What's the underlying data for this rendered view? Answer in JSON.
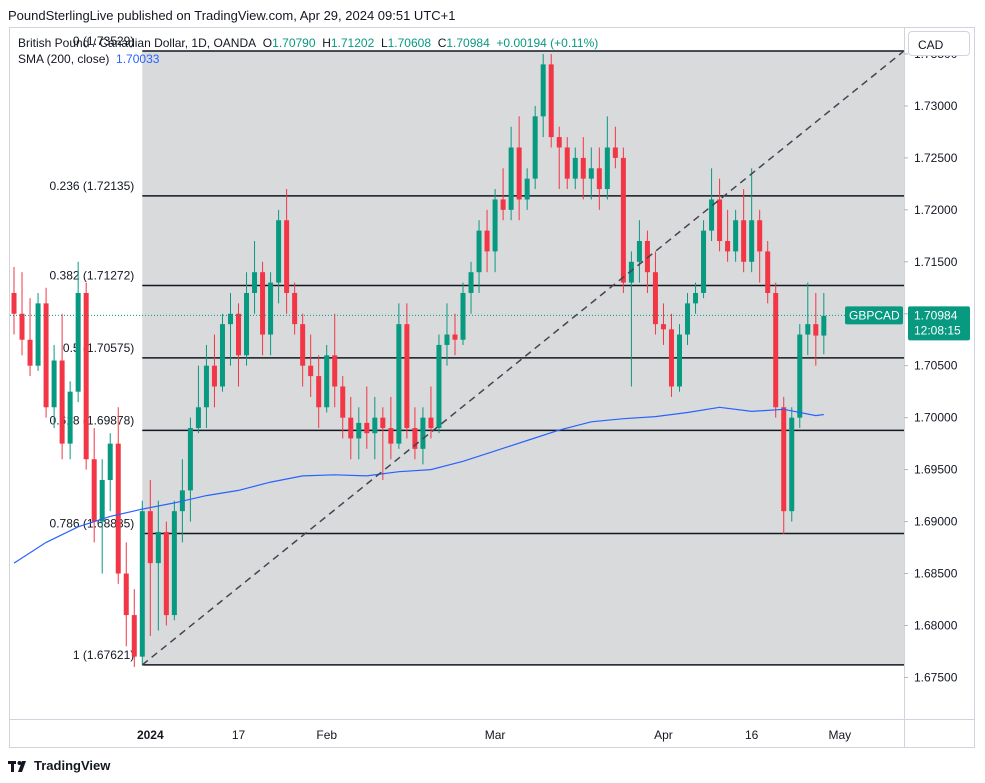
{
  "caption": "PoundSterlingLive published on TradingView.com, Apr 29, 2024 09:51 UTC+1",
  "legend": {
    "title": "British Pound / Canadian Dollar, 1D, OANDA",
    "o_key": "O",
    "o": "1.70790",
    "h_key": "H",
    "h": "1.71202",
    "l_key": "L",
    "l": "1.70608",
    "c_key": "C",
    "c": "1.70984",
    "change": "+0.00194 (+0.11%)",
    "sma_label": "SMA (200, close)",
    "sma_value": "1.70033"
  },
  "currency_button": "CAD",
  "badge": {
    "symbol": "GBPCAD",
    "price": "1.70984",
    "countdown": "12:08:15"
  },
  "footer": {
    "brand": "TradingView",
    "icon": "tradingview-logo-icon"
  },
  "colors": {
    "up": "#089981",
    "down": "#f23645",
    "sma": "#2962ff",
    "fib_bg": "#d9dadb",
    "fib_line": "#131722",
    "trend": "#434651"
  },
  "chart_data": {
    "type": "candlestick",
    "symbol": "GBPCAD",
    "title": "British Pound / Canadian Dollar, 1D, OANDA",
    "ylim": [
      1.671,
      1.7375
    ],
    "y_ticks": [
      "1.73500",
      "1.73000",
      "1.72500",
      "1.72000",
      "1.71500",
      "1.71000",
      "1.70500",
      "1.70000",
      "1.69500",
      "1.69000",
      "1.68500",
      "1.68000",
      "1.67500"
    ],
    "x_labels": [
      {
        "label": "2024",
        "bold": true,
        "index": 1
      },
      {
        "label": "17",
        "bold": false,
        "index": 12
      },
      {
        "label": "Feb",
        "bold": false,
        "index": 23
      },
      {
        "label": "Mar",
        "bold": false,
        "index": 44
      },
      {
        "label": "Apr",
        "bold": false,
        "index": 65
      },
      {
        "label": "16",
        "bold": false,
        "index": 76
      },
      {
        "label": "May",
        "bold": false,
        "index": 87
      }
    ],
    "x_range": [
      -16.5,
      95
    ],
    "fibonacci": {
      "start_index": 0,
      "end_index": 95,
      "levels": [
        {
          "label": "0 (1.73529)",
          "value": 1.73529
        },
        {
          "label": "0.236 (1.72135)",
          "value": 1.72135
        },
        {
          "label": "0.382 (1.71272)",
          "value": 1.71272
        },
        {
          "label": "0.5 (1.70575)",
          "value": 1.70575
        },
        {
          "label": "0.618 (1.69878)",
          "value": 1.69878
        },
        {
          "label": "0.786 (1.68885)",
          "value": 1.68885
        },
        {
          "label": "1 (1.67621)",
          "value": 1.67621
        }
      ]
    },
    "trendline": {
      "from": [
        0,
        1.67621
      ],
      "to": [
        95,
        1.73529
      ],
      "style": "dashed"
    },
    "last_price": 1.70984,
    "candles": [
      [
        -16,
        1.712,
        1.7145,
        1.708,
        1.71
      ],
      [
        -15,
        1.71,
        1.714,
        1.706,
        1.7075
      ],
      [
        -14,
        1.7075,
        1.7115,
        1.704,
        1.705
      ],
      [
        -13,
        1.705,
        1.712,
        1.7045,
        1.711
      ],
      [
        -12,
        1.711,
        1.7125,
        1.7,
        1.701
      ],
      [
        -11,
        1.701,
        1.707,
        1.699,
        1.7055
      ],
      [
        -10,
        1.7055,
        1.71,
        1.696,
        1.6975
      ],
      [
        -9,
        1.6975,
        1.7035,
        1.696,
        1.7025
      ],
      [
        -8,
        1.7025,
        1.715,
        1.7015,
        1.712
      ],
      [
        -7,
        1.712,
        1.713,
        1.695,
        1.696
      ],
      [
        -6,
        1.696,
        1.699,
        1.688,
        1.69
      ],
      [
        -5,
        1.69,
        1.696,
        1.685,
        1.694
      ],
      [
        -4,
        1.694,
        1.6985,
        1.691,
        1.6975
      ],
      [
        -3,
        1.6975,
        1.701,
        1.684,
        1.685
      ],
      [
        -2,
        1.685,
        1.688,
        1.678,
        1.681
      ],
      [
        -1,
        1.681,
        1.6835,
        1.676,
        1.677
      ],
      [
        0,
        1.677,
        1.692,
        1.6762,
        1.691
      ],
      [
        1,
        1.691,
        1.694,
        1.679,
        1.686
      ],
      [
        2,
        1.686,
        1.692,
        1.6795,
        1.689
      ],
      [
        3,
        1.689,
        1.69,
        1.68,
        1.681
      ],
      [
        4,
        1.681,
        1.692,
        1.6805,
        1.691
      ],
      [
        5,
        1.691,
        1.696,
        1.688,
        1.693
      ],
      [
        6,
        1.693,
        1.7,
        1.69,
        1.699
      ],
      [
        7,
        1.699,
        1.705,
        1.6985,
        1.701
      ],
      [
        8,
        1.701,
        1.707,
        1.699,
        1.705
      ],
      [
        9,
        1.705,
        1.708,
        1.701,
        1.703
      ],
      [
        10,
        1.703,
        1.71,
        1.7025,
        1.709
      ],
      [
        11,
        1.709,
        1.712,
        1.705,
        1.71
      ],
      [
        12,
        1.71,
        1.711,
        1.703,
        1.706
      ],
      [
        13,
        1.706,
        1.714,
        1.705,
        1.712
      ],
      [
        14,
        1.712,
        1.717,
        1.71,
        1.714
      ],
      [
        15,
        1.714,
        1.715,
        1.706,
        1.708
      ],
      [
        16,
        1.708,
        1.714,
        1.706,
        1.713
      ],
      [
        17,
        1.713,
        1.72,
        1.711,
        1.719
      ],
      [
        18,
        1.719,
        1.722,
        1.71,
        1.712
      ],
      [
        19,
        1.712,
        1.713,
        1.708,
        1.709
      ],
      [
        20,
        1.709,
        1.71,
        1.703,
        1.705
      ],
      [
        21,
        1.705,
        1.708,
        1.702,
        1.704
      ],
      [
        22,
        1.704,
        1.706,
        1.699,
        1.701
      ],
      [
        23,
        1.701,
        1.707,
        1.7005,
        1.706
      ],
      [
        24,
        1.706,
        1.71,
        1.701,
        1.703
      ],
      [
        25,
        1.703,
        1.704,
        1.698,
        1.7
      ],
      [
        26,
        1.7,
        1.702,
        1.696,
        1.698
      ],
      [
        27,
        1.698,
        1.701,
        1.696,
        1.6995
      ],
      [
        28,
        1.6995,
        1.703,
        1.697,
        1.6985
      ],
      [
        29,
        1.6985,
        1.702,
        1.696,
        1.7
      ],
      [
        30,
        1.7,
        1.701,
        1.694,
        1.699
      ],
      [
        31,
        1.699,
        1.702,
        1.696,
        1.6975
      ],
      [
        32,
        1.6975,
        1.711,
        1.697,
        1.709
      ],
      [
        33,
        1.709,
        1.711,
        1.698,
        1.699
      ],
      [
        34,
        1.699,
        1.701,
        1.696,
        1.697
      ],
      [
        35,
        1.697,
        1.701,
        1.6955,
        1.7
      ],
      [
        36,
        1.7,
        1.703,
        1.698,
        1.699
      ],
      [
        37,
        1.699,
        1.708,
        1.6985,
        1.707
      ],
      [
        38,
        1.707,
        1.711,
        1.705,
        1.708
      ],
      [
        39,
        1.708,
        1.71,
        1.706,
        1.7075
      ],
      [
        40,
        1.7075,
        1.713,
        1.707,
        1.712
      ],
      [
        41,
        1.712,
        1.715,
        1.71,
        1.714
      ],
      [
        42,
        1.714,
        1.719,
        1.712,
        1.718
      ],
      [
        43,
        1.718,
        1.72,
        1.714,
        1.716
      ],
      [
        44,
        1.716,
        1.722,
        1.714,
        1.721
      ],
      [
        45,
        1.721,
        1.724,
        1.719,
        1.72
      ],
      [
        46,
        1.72,
        1.728,
        1.719,
        1.726
      ],
      [
        47,
        1.726,
        1.729,
        1.719,
        1.721
      ],
      [
        48,
        1.721,
        1.724,
        1.72,
        1.723
      ],
      [
        49,
        1.723,
        1.73,
        1.722,
        1.729
      ],
      [
        50,
        1.729,
        1.735,
        1.727,
        1.734
      ],
      [
        51,
        1.734,
        1.735,
        1.726,
        1.727
      ],
      [
        52,
        1.727,
        1.728,
        1.722,
        1.726
      ],
      [
        53,
        1.726,
        1.727,
        1.722,
        1.723
      ],
      [
        54,
        1.723,
        1.726,
        1.722,
        1.725
      ],
      [
        55,
        1.725,
        1.727,
        1.721,
        1.723
      ],
      [
        56,
        1.723,
        1.726,
        1.721,
        1.724
      ],
      [
        57,
        1.724,
        1.726,
        1.72,
        1.722
      ],
      [
        58,
        1.722,
        1.729,
        1.721,
        1.726
      ],
      [
        59,
        1.726,
        1.728,
        1.724,
        1.725
      ],
      [
        60,
        1.725,
        1.726,
        1.712,
        1.713
      ],
      [
        61,
        1.713,
        1.716,
        1.703,
        1.715
      ],
      [
        62,
        1.715,
        1.719,
        1.713,
        1.717
      ],
      [
        63,
        1.717,
        1.718,
        1.712,
        1.714
      ],
      [
        64,
        1.714,
        1.716,
        1.708,
        1.709
      ],
      [
        65,
        1.709,
        1.711,
        1.707,
        1.7085
      ],
      [
        66,
        1.7085,
        1.71,
        1.702,
        1.703
      ],
      [
        67,
        1.703,
        1.709,
        1.7025,
        1.708
      ],
      [
        68,
        1.708,
        1.712,
        1.707,
        1.711
      ],
      [
        69,
        1.711,
        1.713,
        1.71,
        1.712
      ],
      [
        70,
        1.712,
        1.719,
        1.7115,
        1.718
      ],
      [
        71,
        1.718,
        1.724,
        1.717,
        1.721
      ],
      [
        72,
        1.721,
        1.723,
        1.716,
        1.717
      ],
      [
        73,
        1.717,
        1.72,
        1.715,
        1.716
      ],
      [
        74,
        1.716,
        1.72,
        1.715,
        1.719
      ],
      [
        75,
        1.719,
        1.722,
        1.714,
        1.715
      ],
      [
        76,
        1.715,
        1.724,
        1.714,
        1.719
      ],
      [
        77,
        1.719,
        1.72,
        1.713,
        1.716
      ],
      [
        78,
        1.716,
        1.717,
        1.711,
        1.712
      ],
      [
        79,
        1.712,
        1.713,
        1.7,
        1.701
      ],
      [
        80,
        1.701,
        1.702,
        1.6888,
        1.691
      ],
      [
        81,
        1.691,
        1.701,
        1.69,
        1.7
      ],
      [
        82,
        1.7,
        1.709,
        1.699,
        1.708
      ],
      [
        83,
        1.708,
        1.713,
        1.706,
        1.709
      ],
      [
        84,
        1.709,
        1.712,
        1.705,
        1.7079
      ],
      [
        85,
        1.7079,
        1.712,
        1.7061,
        1.7098
      ]
    ],
    "sma": [
      [
        -16,
        1.686
      ],
      [
        -12,
        1.688
      ],
      [
        -8,
        1.6895
      ],
      [
        -4,
        1.6905
      ],
      [
        0,
        1.6912
      ],
      [
        4,
        1.6918
      ],
      [
        8,
        1.6925
      ],
      [
        12,
        1.693
      ],
      [
        16,
        1.6938
      ],
      [
        20,
        1.6944
      ],
      [
        24,
        1.6945
      ],
      [
        28,
        1.6944
      ],
      [
        32,
        1.6948
      ],
      [
        36,
        1.695
      ],
      [
        40,
        1.6958
      ],
      [
        44,
        1.6968
      ],
      [
        48,
        1.6978
      ],
      [
        52,
        1.6988
      ],
      [
        56,
        1.6996
      ],
      [
        60,
        1.6999
      ],
      [
        64,
        1.7001
      ],
      [
        68,
        1.7005
      ],
      [
        72,
        1.701
      ],
      [
        76,
        1.7006
      ],
      [
        80,
        1.7008
      ],
      [
        84,
        1.7002
      ],
      [
        85,
        1.7003
      ]
    ]
  }
}
